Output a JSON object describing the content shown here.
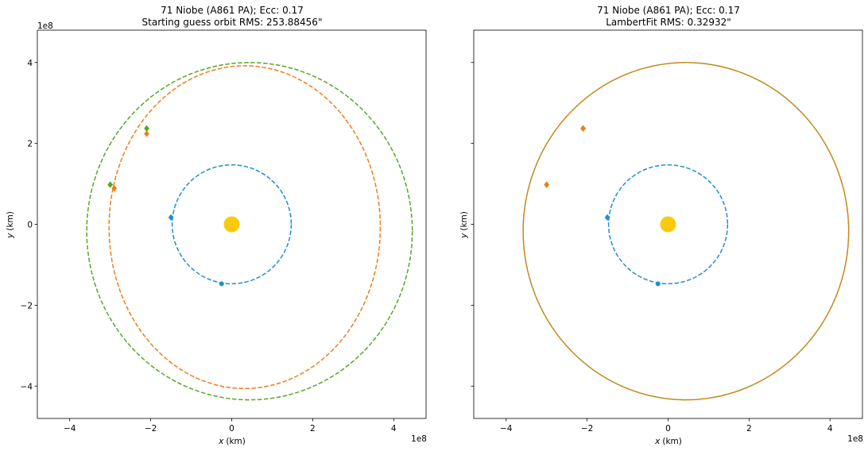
{
  "chart_data": [
    {
      "type": "scatter",
      "title_line1": "71 Niobe (A861 PA); Ecc: 0.17",
      "title_line2": "Starting guess orbit RMS: 253.88456\"",
      "xlabel_italic": "x",
      "xlabel_unit": "(km)",
      "ylabel_italic": "y",
      "ylabel_unit": "(km)",
      "offset_text": "1e8",
      "xlim": [
        -4.8,
        4.8
      ],
      "ylim": [
        -4.8,
        4.8
      ],
      "x_ticks": [
        -4,
        -2,
        0,
        2,
        4
      ],
      "y_ticks": [
        -4,
        -2,
        0,
        2,
        4
      ],
      "x_tick_labels": [
        "−4",
        "−2",
        "0",
        "2",
        "4"
      ],
      "y_tick_labels": [
        "−4",
        "−2",
        "0",
        "2",
        "4"
      ],
      "grid": false,
      "sun": {
        "x": 0,
        "y": 0,
        "color": "#f9cb10"
      },
      "orbits": [
        {
          "cx": 0,
          "cy": 0,
          "rx": 1.47,
          "ry": 1.47,
          "color": "#1f8fd0",
          "dash": "dashed"
        },
        {
          "cx": 0.32,
          "cy": -0.07,
          "rx": 3.35,
          "ry": 3.99,
          "color": "#f07d1b",
          "dash": "dashed"
        },
        {
          "cx": 0.44,
          "cy": -0.17,
          "rx": 4.02,
          "ry": 4.17,
          "color": "#56a825",
          "dash": "dashed"
        }
      ],
      "points": [
        {
          "x": -1.5,
          "y": 0.17,
          "color": "#1f8fd0",
          "marker": "diamond"
        },
        {
          "x": -0.25,
          "y": -1.47,
          "color": "#1f8fd0",
          "marker": "circle"
        },
        {
          "x": -2.1,
          "y": 2.24,
          "color": "#f07d1b",
          "marker": "diamond"
        },
        {
          "x": -2.9,
          "y": 0.89,
          "color": "#f07d1b",
          "marker": "diamond"
        },
        {
          "x": -2.1,
          "y": 2.37,
          "color": "#56a825",
          "marker": "diamond"
        },
        {
          "x": -3.0,
          "y": 0.98,
          "color": "#56a825",
          "marker": "diamond"
        }
      ]
    },
    {
      "type": "scatter",
      "title_line1": "71 Niobe (A861 PA); Ecc: 0.17",
      "title_line2": "LambertFit RMS: 0.32932\"",
      "xlabel_italic": "x",
      "xlabel_unit": "(km)",
      "ylabel_italic": "y",
      "ylabel_unit": "(km)",
      "offset_text": "1e8",
      "xlim": [
        -4.8,
        4.8
      ],
      "ylim": [
        -4.8,
        4.8
      ],
      "x_ticks": [
        -4,
        -2,
        0,
        2,
        4
      ],
      "y_ticks": [
        -4,
        -2,
        0,
        2,
        4
      ],
      "x_tick_labels": [
        "−4",
        "−2",
        "0",
        "2",
        "4"
      ],
      "y_tick_labels": [
        "",
        "",
        "",
        "",
        ""
      ],
      "grid": false,
      "sun": {
        "x": 0,
        "y": 0,
        "color": "#f9cb10"
      },
      "orbits": [
        {
          "cx": 0,
          "cy": 0,
          "rx": 1.47,
          "ry": 1.47,
          "color": "#1f8fd0",
          "dash": "dashed"
        },
        {
          "cx": 0.44,
          "cy": -0.17,
          "rx": 4.02,
          "ry": 4.17,
          "color": "#56a825",
          "dash": "solid"
        },
        {
          "cx": 0.44,
          "cy": -0.17,
          "rx": 4.02,
          "ry": 4.17,
          "color": "#f07d1b",
          "dash": "dashed"
        }
      ],
      "points": [
        {
          "x": -1.5,
          "y": 0.17,
          "color": "#1f8fd0",
          "marker": "diamond"
        },
        {
          "x": -0.25,
          "y": -1.47,
          "color": "#1f8fd0",
          "marker": "circle"
        },
        {
          "x": -2.1,
          "y": 2.37,
          "color": "#56a825",
          "marker": "diamond"
        },
        {
          "x": -3.0,
          "y": 0.98,
          "color": "#56a825",
          "marker": "diamond"
        },
        {
          "x": -2.1,
          "y": 2.37,
          "color": "#f07d1b",
          "marker": "diamond"
        },
        {
          "x": -3.0,
          "y": 0.98,
          "color": "#f07d1b",
          "marker": "diamond"
        }
      ]
    }
  ]
}
